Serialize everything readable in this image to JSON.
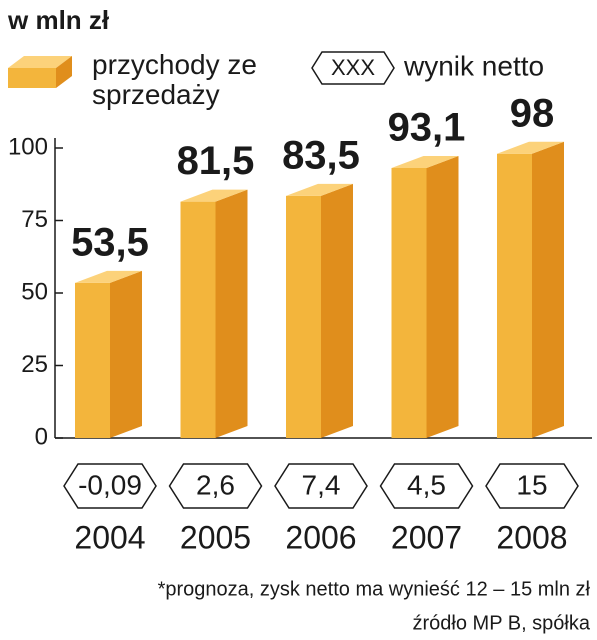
{
  "chart_data": {
    "type": "bar3d",
    "unit_label": "w mln zł",
    "categories": [
      "2004",
      "2005",
      "2006",
      "2007",
      "2008"
    ],
    "series": [
      {
        "name": "przychody ze sprzedaży",
        "color": "#f3b53c",
        "values": [
          53.5,
          81.5,
          83.5,
          93.1,
          98
        ],
        "value_labels": [
          "53,5",
          "81,5",
          "83,5",
          "93,1",
          "98"
        ],
        "value_label_colors": [
          "#1a1a1a",
          "#1a1a1a",
          "#1a1a1a",
          "#1a1a1a",
          "#c8102e"
        ]
      },
      {
        "name": "wynik netto",
        "symbol": "XXX",
        "values": [
          -0.09,
          2.6,
          7.4,
          4.5,
          15
        ],
        "value_labels": [
          "-0,09",
          "2,6",
          "7,4",
          "4,5",
          "15"
        ]
      }
    ],
    "ylim": [
      0,
      100
    ],
    "yticks": [
      0,
      25,
      50,
      75,
      100
    ],
    "footnote": "*prognoza, zysk netto ma wynieść 12 – 15 mln zł",
    "source": "źródło MP B, spółka"
  }
}
